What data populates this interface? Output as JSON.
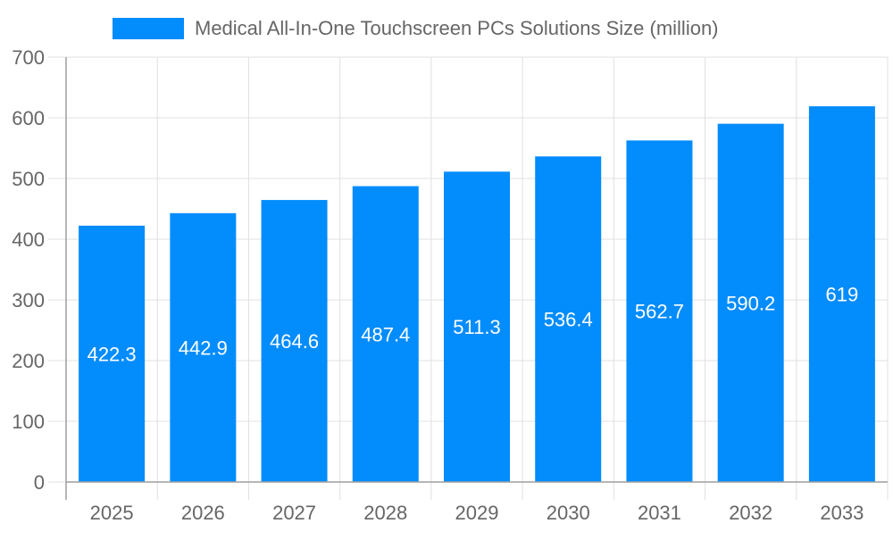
{
  "chart_data": {
    "type": "bar",
    "categories": [
      "2025",
      "2026",
      "2027",
      "2028",
      "2029",
      "2030",
      "2031",
      "2032",
      "2033"
    ],
    "series": [
      {
        "name": "Medical All-In-One Touchscreen PCs Solutions Size (million)",
        "values": [
          422.3,
          442.9,
          464.6,
          487.4,
          511.3,
          536.4,
          562.7,
          590.2,
          619
        ]
      }
    ],
    "data_labels": [
      "422.3",
      "442.9",
      "464.6",
      "487.4",
      "511.3",
      "536.4",
      "562.7",
      "590.2",
      "619"
    ],
    "yticks": [
      "0",
      "100",
      "200",
      "300",
      "400",
      "500",
      "600",
      "700"
    ],
    "ylim": [
      0,
      700
    ],
    "grid": true,
    "legend_position": "top",
    "colors": {
      "bar": "#038cfc",
      "grid": "#e0e0e0",
      "axis": "#9e9e9e",
      "text": "#666666",
      "label": "#ffffff"
    }
  }
}
